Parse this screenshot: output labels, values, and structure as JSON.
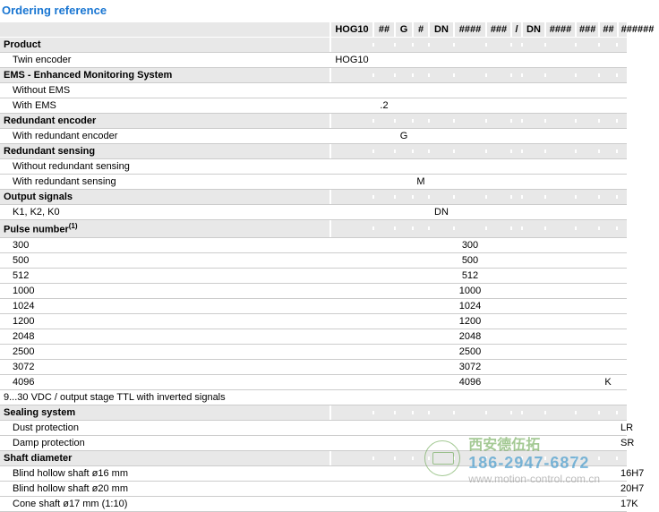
{
  "title": "Ordering reference",
  "headers": [
    "",
    "HOG10",
    "##",
    "G",
    "#",
    "DN",
    "####",
    "###",
    "/",
    "DN",
    "####",
    "###",
    "##",
    "######"
  ],
  "sections": [
    {
      "label": "Product",
      "rows": [
        {
          "label": "Twin encoder",
          "vals": {
            "1": "HOG10"
          }
        }
      ]
    },
    {
      "label": "EMS - Enhanced Monitoring System",
      "rows": [
        {
          "label": "Without EMS",
          "vals": {}
        },
        {
          "label": "With EMS",
          "vals": {
            "2": ".2"
          }
        }
      ]
    },
    {
      "label": "Redundant encoder",
      "rows": [
        {
          "label": "With redundant encoder",
          "vals": {
            "3": "G"
          }
        }
      ]
    },
    {
      "label": "Redundant sensing",
      "rows": [
        {
          "label": "Without redundant sensing",
          "vals": {}
        },
        {
          "label": "With redundant sensing",
          "vals": {
            "4": "M"
          }
        }
      ]
    },
    {
      "label": "Output signals",
      "rows": [
        {
          "label": "K1, K2, K0",
          "vals": {
            "5": "DN"
          }
        }
      ]
    },
    {
      "label": "Pulse number",
      "sup": "(1)",
      "rows": [
        {
          "label": "300",
          "vals": {
            "6": "300"
          }
        },
        {
          "label": "500",
          "vals": {
            "6": "500"
          }
        },
        {
          "label": "512",
          "vals": {
            "6": "512"
          }
        },
        {
          "label": "1000",
          "vals": {
            "6": "1000"
          }
        },
        {
          "label": "1024",
          "vals": {
            "6": "1024"
          }
        },
        {
          "label": "1200",
          "vals": {
            "6": "1200"
          }
        },
        {
          "label": "2048",
          "vals": {
            "6": "2048"
          }
        },
        {
          "label": "2500",
          "vals": {
            "6": "2500"
          }
        },
        {
          "label": "3072",
          "vals": {
            "6": "3072"
          }
        },
        {
          "label": "4096",
          "vals": {
            "6": "4096",
            "12": "K"
          }
        }
      ]
    },
    {
      "truncated": "9...30 VDC / output stage TTL with inverted signals"
    },
    {
      "label": "Sealing system",
      "rows": [
        {
          "label": "Dust protection",
          "vals": {
            "13": "LR"
          }
        },
        {
          "label": "Damp protection",
          "vals": {
            "13": "SR"
          }
        }
      ]
    },
    {
      "label": "Shaft diameter",
      "rows": [
        {
          "label": "Blind hollow shaft ø16 mm",
          "vals": {
            "13": "16H7"
          }
        },
        {
          "label": "Blind hollow shaft ø20 mm",
          "vals": {
            "13": "20H7"
          }
        },
        {
          "label": "Cone shaft ø17 mm (1:10)",
          "vals": {
            "13": "17K"
          }
        }
      ]
    }
  ],
  "watermark": {
    "company_cn": "西安德伍拓",
    "phone": "186-2947-6872",
    "url": "www.motion-control.com.cn"
  },
  "colors": {
    "title": "#1976d2",
    "section_bg": "#e8e8e8",
    "border": "#cccccc",
    "wm_green": "#5a9e3e",
    "wm_blue": "#1e88c7"
  }
}
